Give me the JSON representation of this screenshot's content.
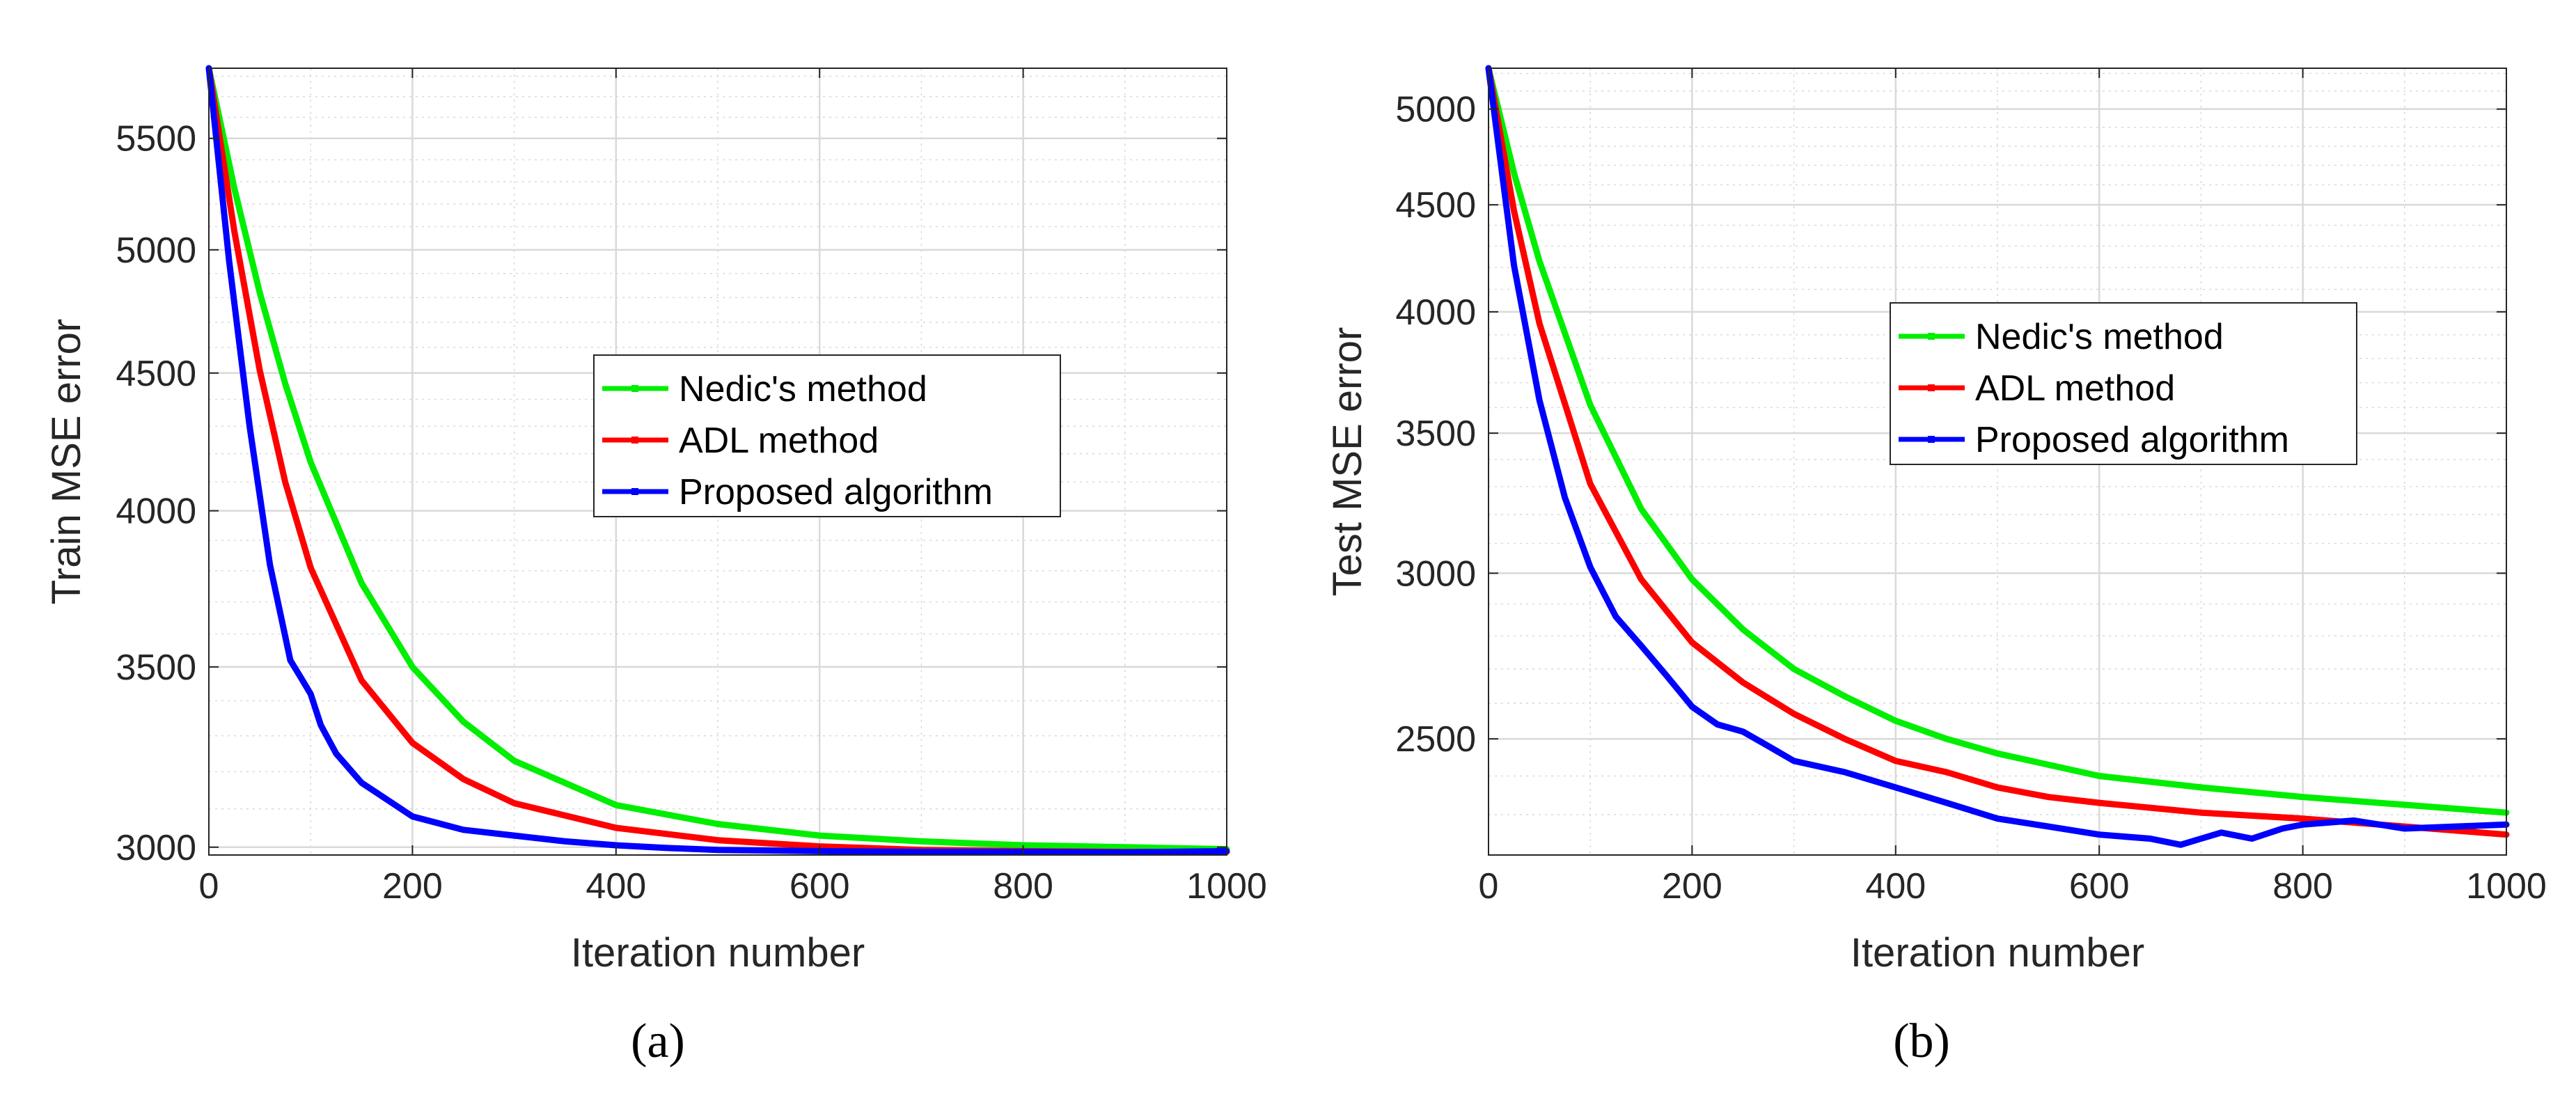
{
  "colors": {
    "nedic": "#00ee00",
    "adl": "#ff0000",
    "proposed": "#0000ff",
    "grid": "#d9d9d9",
    "axes": "#262626"
  },
  "chart_data": [
    {
      "type": "line",
      "panel_label": "(a)",
      "xlabel": "Iteration number",
      "ylabel": "Train MSE error",
      "y_scale": "log",
      "xlim": [
        0,
        1000
      ],
      "ylim": [
        2980,
        5840
      ],
      "x_ticks": [
        0,
        200,
        400,
        600,
        800,
        1000
      ],
      "y_ticks": [
        3000,
        3500,
        4000,
        4500,
        5000,
        5500
      ],
      "legend_position": "center",
      "series": [
        {
          "name": "Nedic's method",
          "color_key": "nedic",
          "x": [
            0,
            25,
            50,
            75,
            100,
            150,
            200,
            250,
            300,
            400,
            500,
            600,
            700,
            800,
            900,
            1000
          ],
          "y": [
            5840,
            5270,
            4820,
            4460,
            4170,
            3760,
            3500,
            3340,
            3230,
            3110,
            3060,
            3030,
            3015,
            3005,
            3000,
            2995
          ]
        },
        {
          "name": "ADL method",
          "color_key": "adl",
          "x": [
            0,
            25,
            50,
            75,
            100,
            150,
            200,
            250,
            300,
            400,
            500,
            600,
            700,
            800,
            900,
            1000
          ],
          "y": [
            5840,
            5080,
            4510,
            4100,
            3810,
            3460,
            3280,
            3180,
            3115,
            3050,
            3018,
            3002,
            2993,
            2990,
            2988,
            2988
          ]
        },
        {
          "name": "Proposed algorithm",
          "color_key": "proposed",
          "x": [
            0,
            20,
            40,
            60,
            80,
            90,
            100,
            110,
            125,
            150,
            200,
            250,
            300,
            350,
            400,
            450,
            500,
            600,
            700,
            800,
            900,
            1000
          ],
          "y": [
            5840,
            4950,
            4300,
            3820,
            3520,
            3470,
            3420,
            3330,
            3250,
            3170,
            3080,
            3045,
            3030,
            3015,
            3005,
            2998,
            2993,
            2990,
            2988,
            2988,
            2987,
            2990
          ]
        }
      ]
    },
    {
      "type": "line",
      "panel_label": "(b)",
      "xlabel": "Iteration number",
      "ylabel": "Test MSE error",
      "y_scale": "log",
      "xlim": [
        0,
        1000
      ],
      "ylim": [
        2200,
        5230
      ],
      "x_ticks": [
        0,
        200,
        400,
        600,
        800,
        1000
      ],
      "y_ticks": [
        2500,
        3000,
        3500,
        4000,
        4500,
        5000
      ],
      "legend_position": "upper-center",
      "series": [
        {
          "name": "Nedic's method",
          "color_key": "nedic",
          "x": [
            0,
            25,
            50,
            100,
            150,
            200,
            250,
            300,
            350,
            400,
            450,
            500,
            600,
            700,
            800,
            900,
            1000
          ],
          "y": [
            5230,
            4660,
            4230,
            3610,
            3220,
            2980,
            2820,
            2700,
            2620,
            2550,
            2500,
            2460,
            2400,
            2370,
            2345,
            2325,
            2305
          ]
        },
        {
          "name": "ADL method",
          "color_key": "adl",
          "x": [
            0,
            25,
            50,
            100,
            150,
            200,
            250,
            300,
            350,
            400,
            450,
            500,
            550,
            600,
            700,
            800,
            900,
            1000
          ],
          "y": [
            5230,
            4470,
            3950,
            3310,
            2980,
            2780,
            2660,
            2570,
            2500,
            2440,
            2410,
            2370,
            2345,
            2330,
            2305,
            2290,
            2270,
            2250
          ]
        },
        {
          "name": "Proposed algorithm",
          "color_key": "proposed",
          "x": [
            0,
            25,
            50,
            75,
            100,
            125,
            150,
            175,
            200,
            225,
            250,
            275,
            300,
            350,
            400,
            450,
            500,
            550,
            600,
            650,
            680,
            700,
            720,
            750,
            780,
            800,
            850,
            900,
            950,
            1000
          ],
          "y": [
            5230,
            4210,
            3630,
            3260,
            3020,
            2860,
            2770,
            2680,
            2590,
            2540,
            2520,
            2480,
            2440,
            2410,
            2370,
            2330,
            2290,
            2270,
            2250,
            2240,
            2225,
            2240,
            2255,
            2240,
            2265,
            2275,
            2285,
            2265,
            2270,
            2275
          ]
        }
      ]
    }
  ]
}
